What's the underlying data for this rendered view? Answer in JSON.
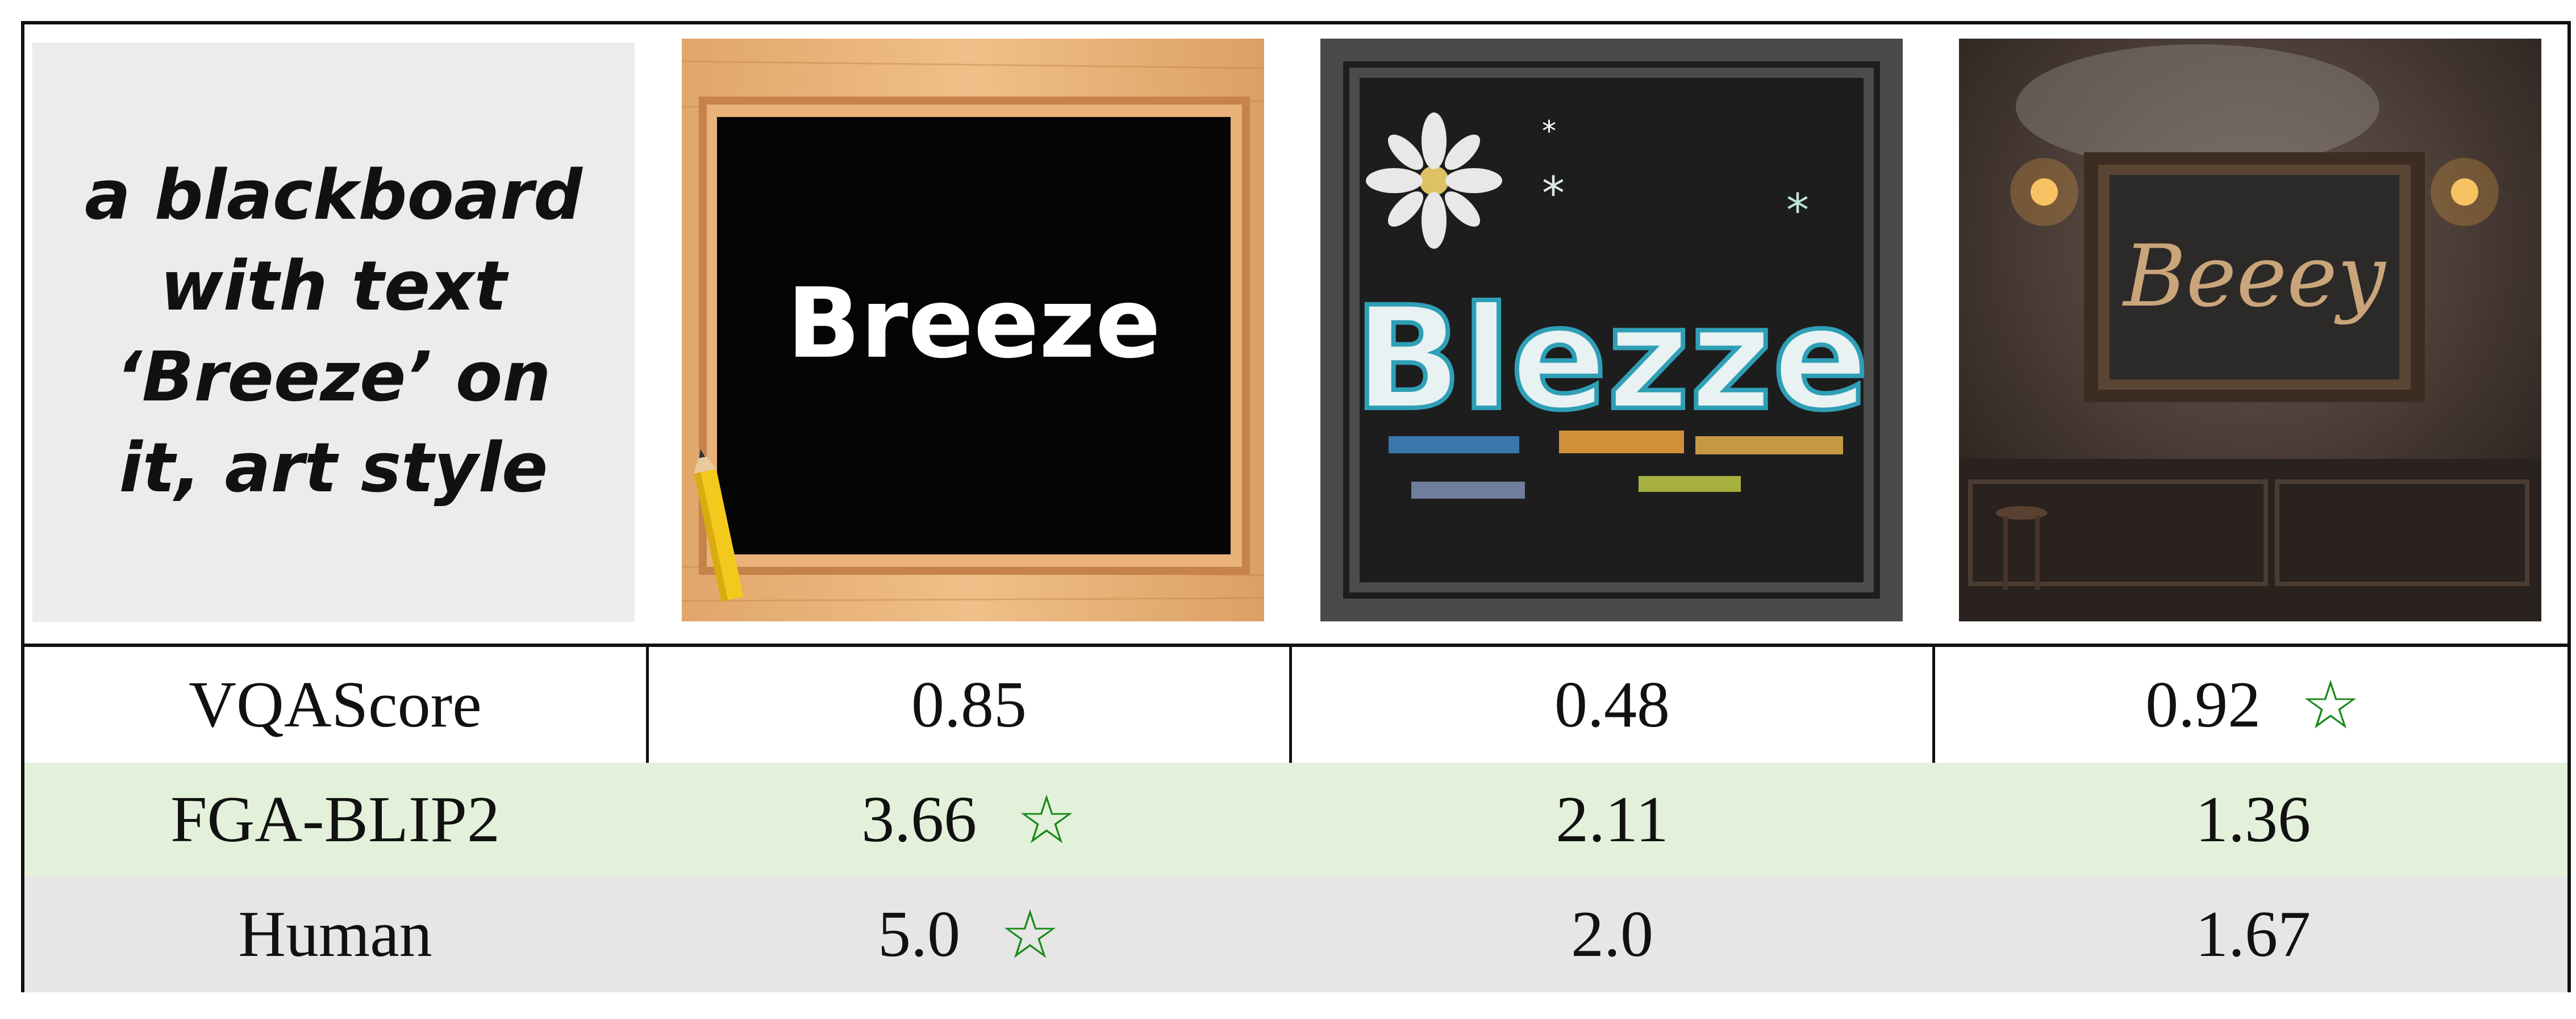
{
  "prompt": "a blackboard with text ‘Breeze’ on it, art style",
  "images": [
    {
      "text": "Breeze"
    },
    {
      "text": "Blezze"
    },
    {
      "text": "Beeey"
    }
  ],
  "metrics": [
    {
      "name": "VQAScore",
      "values": [
        "0.85",
        "0.48",
        "0.92"
      ],
      "best_index": 2,
      "bg": "#ffffff"
    },
    {
      "name": "FGA-BLIP2",
      "values": [
        "3.66",
        "2.11",
        "1.36"
      ],
      "best_index": 0,
      "bg": "#e3f1da"
    },
    {
      "name": "Human",
      "values": [
        "5.0",
        "2.0",
        "1.67"
      ],
      "best_index": 0,
      "bg": "#e6e6e6"
    }
  ],
  "star_symbol": "☆",
  "colors": {
    "star": "#1a8a1a",
    "fga_row": "#e3f1da",
    "human_row": "#e6e6e6"
  }
}
